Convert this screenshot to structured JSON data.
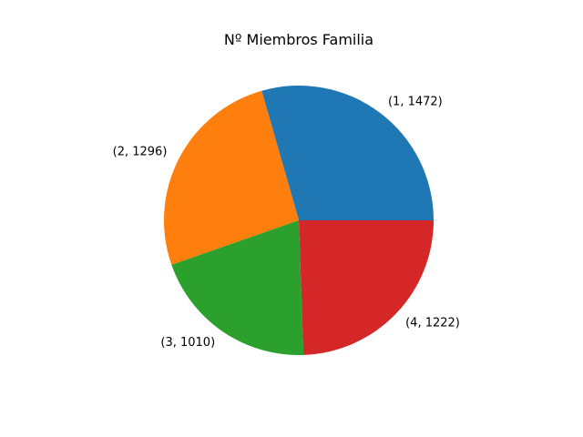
{
  "chart_data": {
    "type": "pie",
    "title": "Nº Miembros Familia",
    "categories": [
      "(1, 1472)",
      "(2, 1296)",
      "(3, 1010)",
      "(4, 1222)"
    ],
    "values": [
      1472,
      1296,
      1010,
      1222
    ],
    "colors": [
      "#1f77b4",
      "#ff7f0e",
      "#2ca02c",
      "#d62728"
    ],
    "start_angle_deg": 0,
    "direction": "counterclockwise",
    "legend": "none"
  }
}
